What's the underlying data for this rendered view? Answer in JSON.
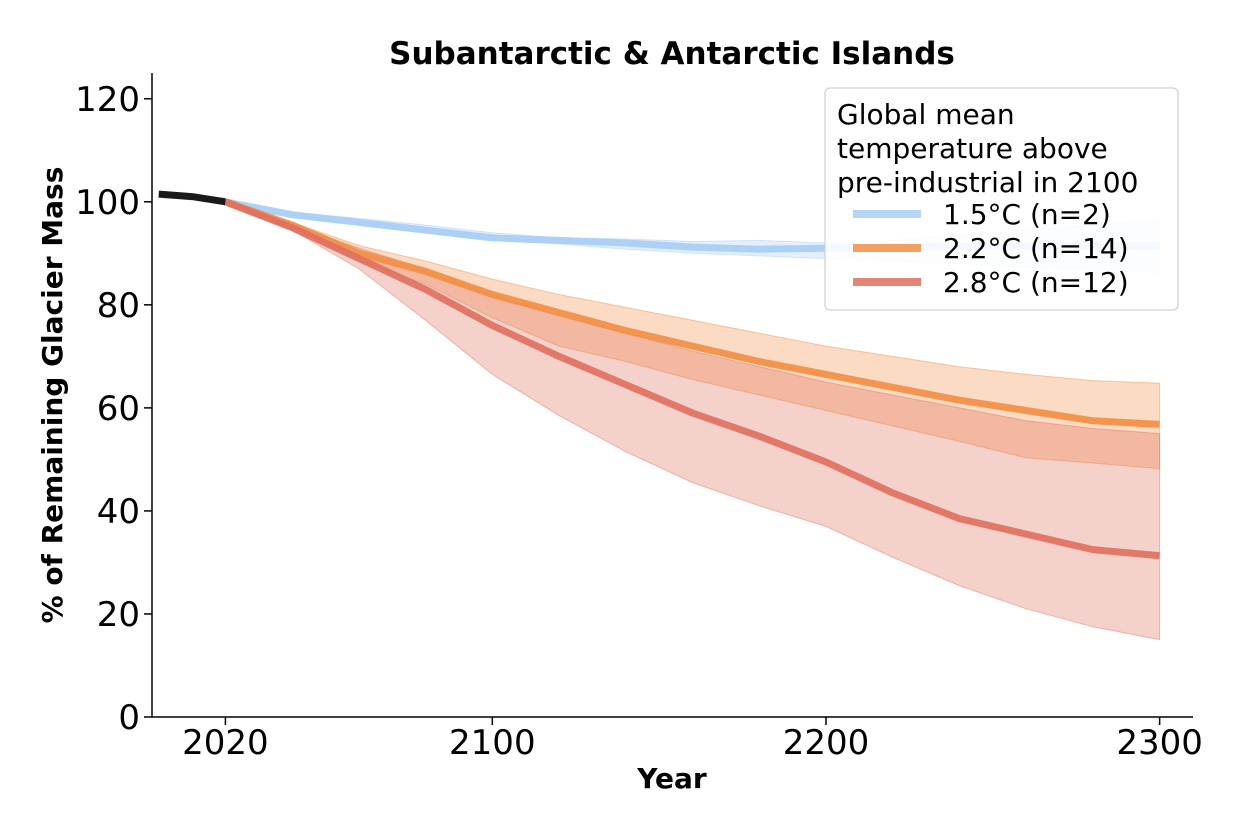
{
  "chart_data": {
    "type": "line",
    "title": "Subantarctic & Antarctic Islands",
    "xlabel": "Year",
    "ylabel": "% of Remaining Glacier Mass",
    "xlim": [
      1998,
      2310
    ],
    "ylim": [
      0,
      125
    ],
    "xticks": [
      2020,
      2100,
      2200,
      2300
    ],
    "yticks": [
      0,
      20,
      40,
      60,
      80,
      100,
      120
    ],
    "grid": false,
    "legend": {
      "title": "Global mean\ntemperature above\npre-industrial in 2100",
      "placement": "top-right"
    },
    "historical": {
      "color": "#1a1a1a",
      "x": [
        2000,
        2010,
        2020
      ],
      "y": [
        101.5,
        101.0,
        100.0
      ]
    },
    "series": [
      {
        "name": "1.5°C (n=2)",
        "color": "#a8cef5",
        "x": [
          2020,
          2040,
          2060,
          2080,
          2100,
          2120,
          2140,
          2160,
          2180,
          2200,
          2220,
          2240,
          2260,
          2280,
          2300
        ],
        "y": [
          100,
          97.5,
          96,
          94.5,
          93,
          92.5,
          92,
          91.2,
          90.8,
          91,
          91.2,
          91.3,
          91.4,
          91.5,
          91.5
        ],
        "upper": [
          100,
          98,
          96.8,
          95.5,
          94,
          93,
          92.8,
          92.3,
          92.5,
          92,
          92.5,
          93.5,
          94.5,
          95.5,
          96.5
        ],
        "lower": [
          100,
          97,
          95.5,
          94,
          92.5,
          91.8,
          90.8,
          90,
          89.5,
          89,
          88.5,
          88,
          87.3,
          86.8,
          86.3
        ]
      },
      {
        "name": "2.2°C (n=14)",
        "color": "#f28f45",
        "x": [
          2020,
          2040,
          2060,
          2080,
          2100,
          2120,
          2140,
          2160,
          2180,
          2200,
          2220,
          2240,
          2260,
          2280,
          2300
        ],
        "y": [
          100,
          95.5,
          90,
          86.5,
          82,
          78.5,
          75,
          72,
          69,
          66.5,
          64,
          61.5,
          59.5,
          57.5,
          56.8
        ],
        "upper": [
          100,
          96,
          91.5,
          88.5,
          85,
          82,
          79.5,
          77,
          74.5,
          72,
          70,
          68,
          66.5,
          65.3,
          64.8
        ],
        "lower": [
          100,
          95,
          88.5,
          84,
          77.5,
          72,
          69,
          65.5,
          62.5,
          59.5,
          56.5,
          53.5,
          50.3,
          49.3,
          48.2
        ]
      },
      {
        "name": "2.8°C (n=12)",
        "color": "#e0705e",
        "x": [
          2020,
          2040,
          2060,
          2080,
          2100,
          2120,
          2140,
          2160,
          2180,
          2200,
          2220,
          2240,
          2260,
          2280,
          2300
        ],
        "y": [
          100,
          95,
          89,
          83,
          76,
          70,
          64.5,
          59,
          54.5,
          49.5,
          43.5,
          38.5,
          35.5,
          32.5,
          31.3
        ],
        "upper": [
          100,
          95.5,
          91,
          87,
          82,
          78,
          74.5,
          71,
          68,
          65,
          62.5,
          60,
          57.5,
          56,
          55
        ],
        "lower": [
          100,
          94.5,
          87,
          77,
          66.5,
          58.5,
          51.5,
          45.5,
          41,
          37,
          31,
          25.5,
          21,
          17.5,
          15
        ]
      }
    ]
  }
}
